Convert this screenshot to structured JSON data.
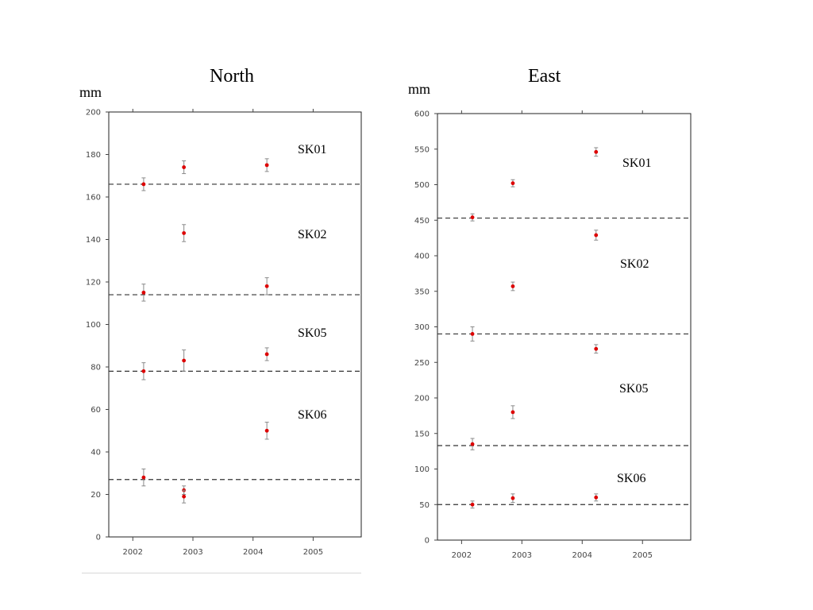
{
  "charts": {
    "north": {
      "title": "North",
      "unit": "mm"
    },
    "east": {
      "title": "East",
      "unit": "mm"
    }
  },
  "chart_data": [
    {
      "type": "scatter",
      "title": "North",
      "ylabel": "mm",
      "xlabel": "",
      "xlim": [
        2001.6,
        2005.8
      ],
      "ylim": [
        0,
        200
      ],
      "xticks": [
        2002,
        2003,
        2004,
        2005
      ],
      "yticks": [
        0,
        20,
        40,
        60,
        80,
        100,
        120,
        140,
        160,
        180,
        200
      ],
      "grid": false,
      "marker_color": "#dd0000",
      "errorbar_color": "#8a8a8a",
      "series": [
        {
          "name": "SK01",
          "reference": 166,
          "points": [
            {
              "x": 2002.18,
              "y": 166,
              "err": 3
            },
            {
              "x": 2002.85,
              "y": 174,
              "err": 3
            },
            {
              "x": 2004.23,
              "y": 175,
              "err": 3
            }
          ]
        },
        {
          "name": "SK02",
          "reference": 114,
          "points": [
            {
              "x": 2002.18,
              "y": 115,
              "err": 4
            },
            {
              "x": 2002.85,
              "y": 143,
              "err": 4
            },
            {
              "x": 2004.23,
              "y": 118,
              "err": 4
            }
          ]
        },
        {
          "name": "SK05",
          "reference": 78,
          "points": [
            {
              "x": 2002.18,
              "y": 78,
              "err": 4
            },
            {
              "x": 2002.85,
              "y": 83,
              "err": 5
            },
            {
              "x": 2004.23,
              "y": 86,
              "err": 3
            }
          ]
        },
        {
          "name": "SK06",
          "reference": 27,
          "points": [
            {
              "x": 2002.18,
              "y": 28,
              "err": 4
            },
            {
              "x": 2002.85,
              "y": 22,
              "err": 2
            },
            {
              "x": 2002.85,
              "y": 19,
              "err": 3
            },
            {
              "x": 2004.23,
              "y": 50,
              "err": 4
            }
          ]
        }
      ]
    },
    {
      "type": "scatter",
      "title": "East",
      "ylabel": "mm",
      "xlabel": "",
      "xlim": [
        2001.6,
        2005.8
      ],
      "ylim": [
        0,
        600
      ],
      "xticks": [
        2002,
        2003,
        2004,
        2005
      ],
      "yticks": [
        0,
        50,
        100,
        150,
        200,
        250,
        300,
        350,
        400,
        450,
        500,
        550,
        600
      ],
      "grid": false,
      "marker_color": "#dd0000",
      "errorbar_color": "#8a8a8a",
      "series": [
        {
          "name": "SK01",
          "reference": 453,
          "points": [
            {
              "x": 2002.18,
              "y": 454,
              "err": 5
            },
            {
              "x": 2002.85,
              "y": 502,
              "err": 5
            },
            {
              "x": 2004.23,
              "y": 546,
              "err": 6
            }
          ]
        },
        {
          "name": "SK02",
          "reference": 290,
          "points": [
            {
              "x": 2002.18,
              "y": 290,
              "err": 10
            },
            {
              "x": 2002.85,
              "y": 357,
              "err": 6
            },
            {
              "x": 2004.23,
              "y": 429,
              "err": 7
            }
          ]
        },
        {
          "name": "SK05",
          "reference": 133,
          "points": [
            {
              "x": 2002.18,
              "y": 135,
              "err": 8
            },
            {
              "x": 2002.85,
              "y": 180,
              "err": 9
            },
            {
              "x": 2004.23,
              "y": 269,
              "err": 6
            }
          ]
        },
        {
          "name": "SK06",
          "reference": 50,
          "points": [
            {
              "x": 2002.18,
              "y": 50,
              "err": 5
            },
            {
              "x": 2002.85,
              "y": 59,
              "err": 6
            },
            {
              "x": 2004.23,
              "y": 60,
              "err": 5
            }
          ]
        }
      ]
    }
  ]
}
